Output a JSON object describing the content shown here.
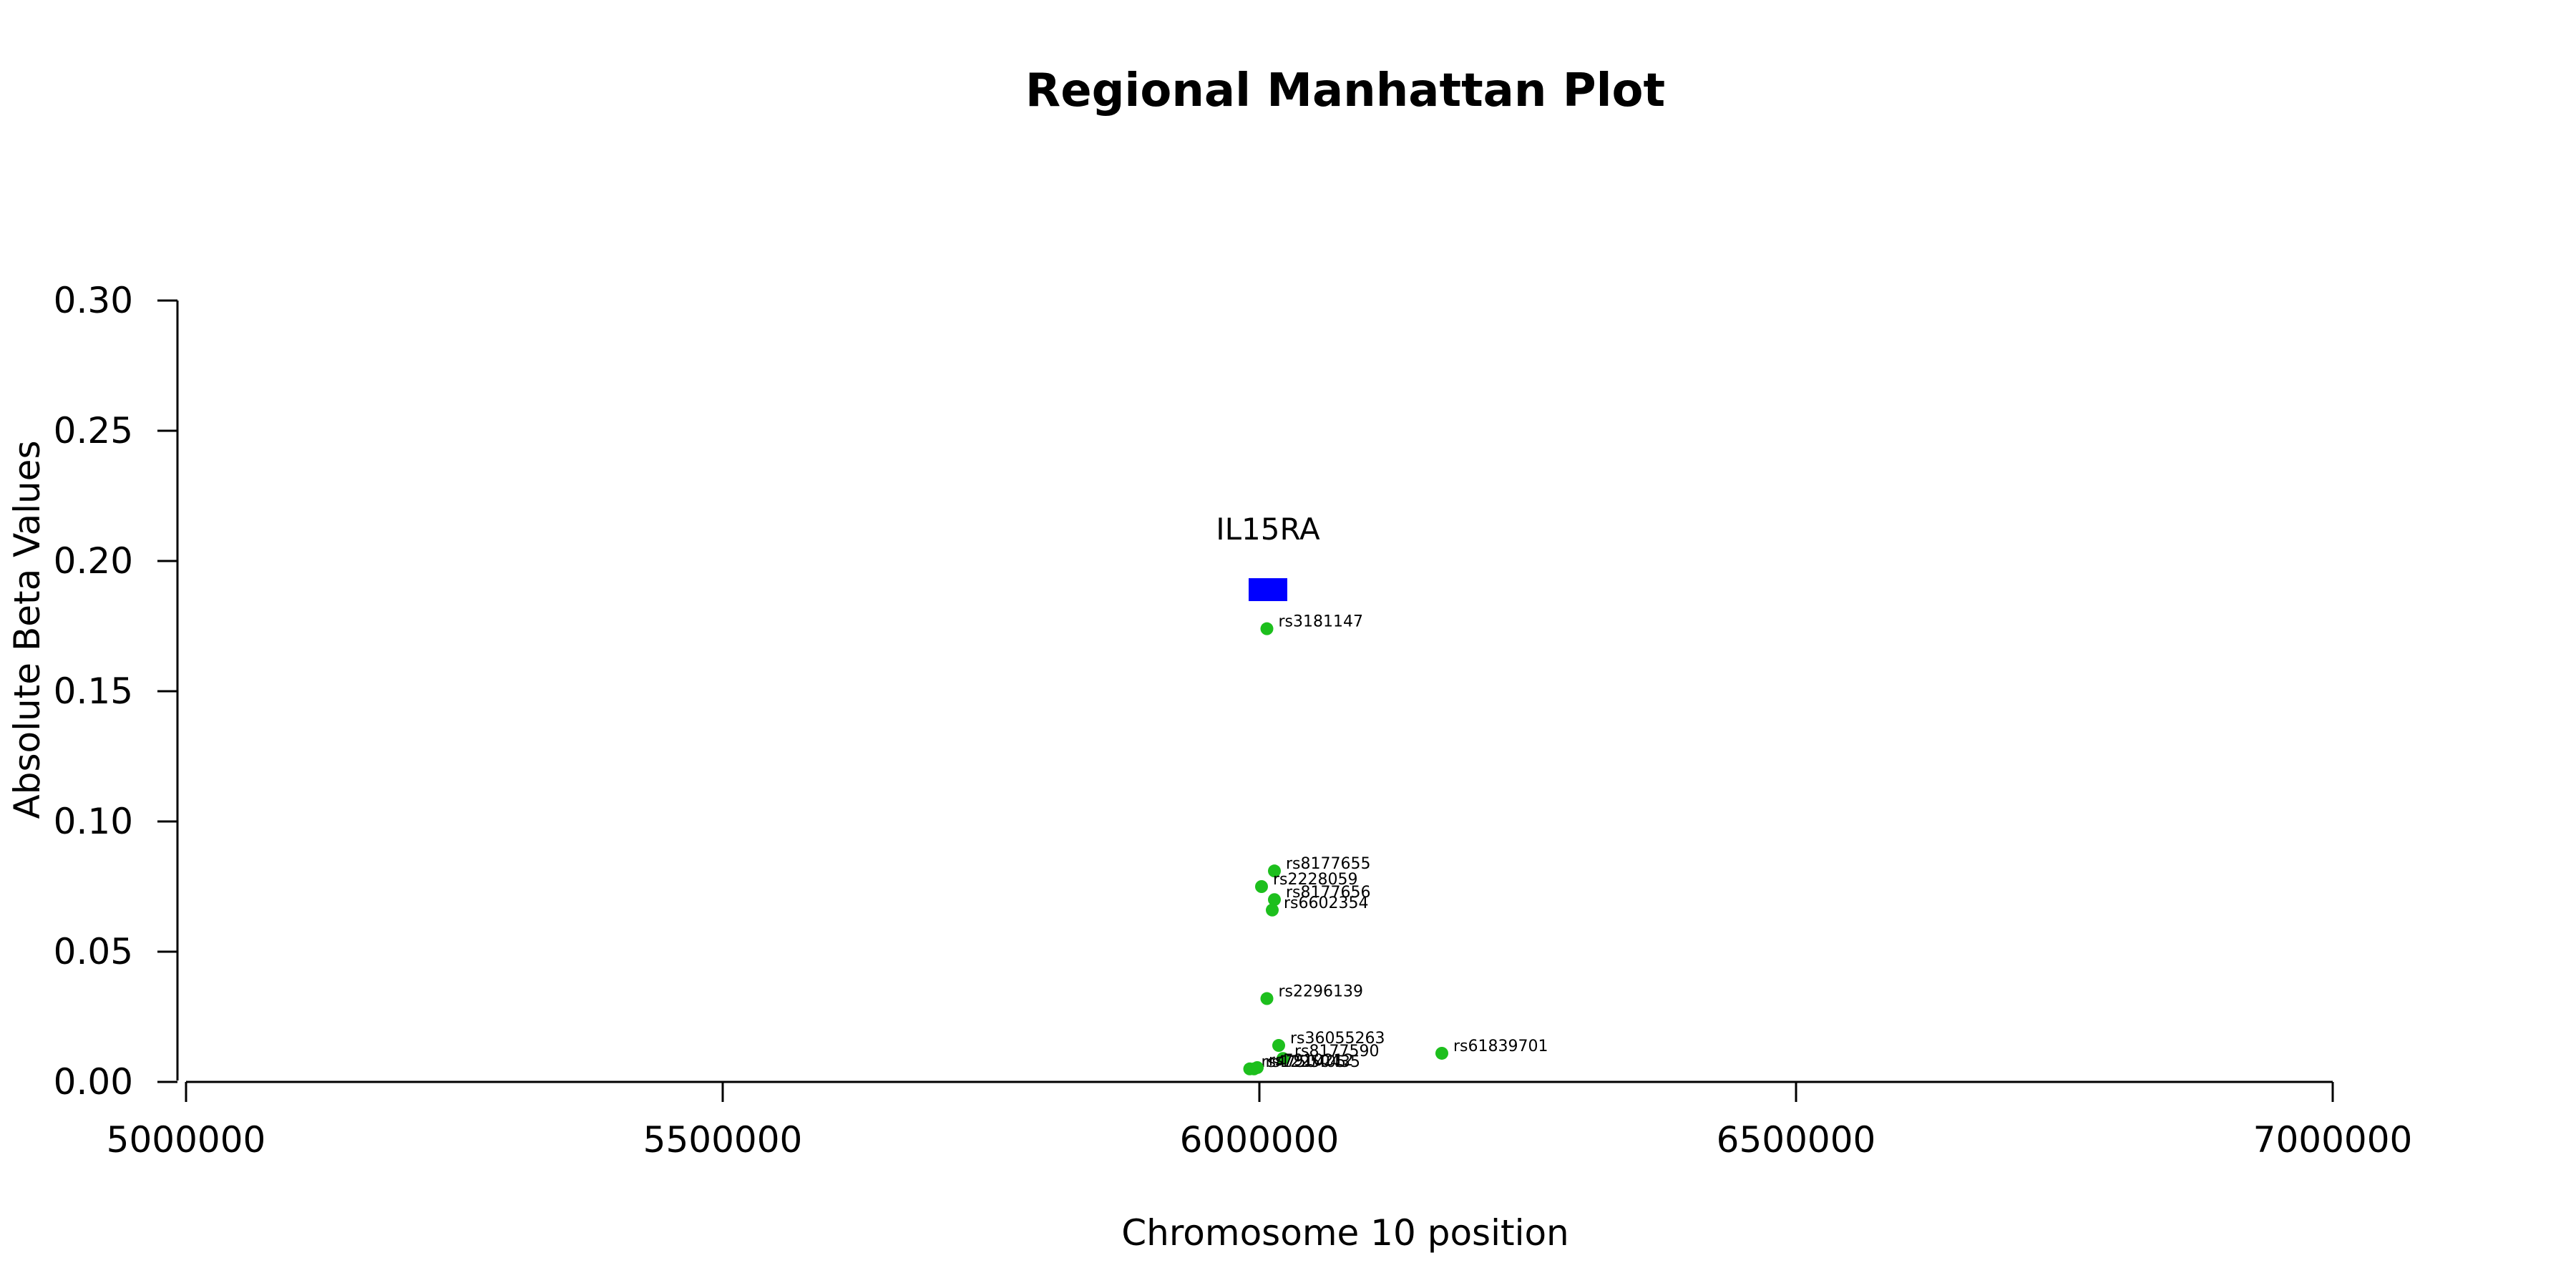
{
  "chart_data": {
    "type": "scatter",
    "title": "Regional Manhattan Plot",
    "xlabel": "Chromosome 10 position",
    "ylabel": "Absolute Beta Values",
    "xlim": [
      5000000,
      7000000
    ],
    "ylim": [
      0,
      0.3
    ],
    "x_ticks": [
      5000000,
      5500000,
      6000000,
      6500000,
      7000000
    ],
    "x_tick_labels": [
      "5000000",
      "5500000",
      "6000000",
      "6500000",
      "7000000"
    ],
    "y_ticks": [
      0,
      0.05,
      0.1,
      0.15,
      0.2,
      0.25,
      0.3
    ],
    "y_tick_labels": [
      "0.00",
      "0.05",
      "0.10",
      "0.15",
      "0.20",
      "0.25",
      "0.30"
    ],
    "grid": false,
    "point_color": "#1dbf1d",
    "gene_color": "#0000ff",
    "genes": [
      {
        "name": "IL15RA",
        "start": 5990000,
        "end": 6026000,
        "y": 0.189
      }
    ],
    "points": [
      {
        "snp": "rs3181147",
        "x": 6007000,
        "y": 0.174
      },
      {
        "snp": "rs8177655",
        "x": 6014000,
        "y": 0.081
      },
      {
        "snp": "rs2228059",
        "x": 6002000,
        "y": 0.075
      },
      {
        "snp": "rs8177656",
        "x": 6014000,
        "y": 0.07
      },
      {
        "snp": "rs6602354",
        "x": 6012000,
        "y": 0.066
      },
      {
        "snp": "rs2296139",
        "x": 6007000,
        "y": 0.032
      },
      {
        "snp": "rs36055263",
        "x": 6018000,
        "y": 0.014
      },
      {
        "snp": "rs8177590",
        "x": 6022000,
        "y": 0.009
      },
      {
        "snp": "rs61839701",
        "x": 6170000,
        "y": 0.011
      },
      {
        "snp": "rs4750405",
        "x": 5991000,
        "y": 0.005
      },
      {
        "snp": "rs12250435",
        "x": 5995000,
        "y": 0.005
      },
      {
        "snp": "rs7910212",
        "x": 5998000,
        "y": 0.0055
      }
    ]
  }
}
